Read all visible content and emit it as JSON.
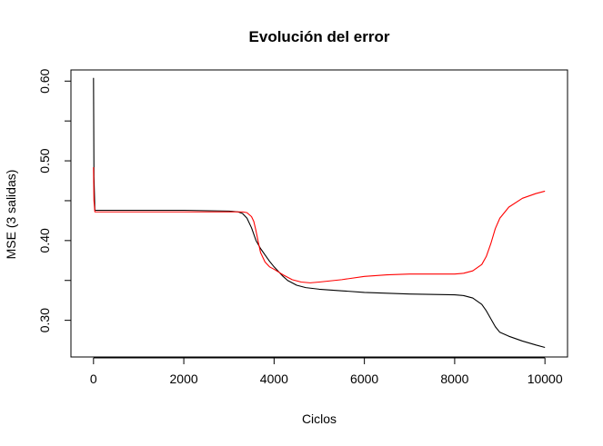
{
  "chart_data": {
    "type": "line",
    "title": "Evolución del error",
    "xlabel": "Ciclos",
    "ylabel": "MSE (3 salidas)",
    "xlim": [
      -500,
      10500
    ],
    "ylim": [
      0.254,
      0.614
    ],
    "xticks": [
      0,
      2000,
      4000,
      6000,
      8000,
      10000
    ],
    "xtick_labels": [
      "0",
      "2000",
      "4000",
      "6000",
      "8000",
      "10000"
    ],
    "yticks": [
      0.3,
      0.4,
      0.5,
      0.6
    ],
    "ytick_labels": [
      "0.30",
      "0.40",
      "0.50",
      "0.60"
    ],
    "grid": false,
    "legend": "none",
    "series": [
      {
        "color": "#000000",
        "x": [
          0,
          10,
          30,
          100,
          500,
          1000,
          2000,
          3000,
          3200,
          3300,
          3400,
          3500,
          3600,
          3700,
          3800,
          3900,
          4000,
          4100,
          4200,
          4300,
          4400,
          4500,
          4700,
          5000,
          5500,
          6000,
          7000,
          8000,
          8200,
          8400,
          8600,
          8700,
          8800,
          8900,
          9000,
          9200,
          9500,
          9800,
          10000
        ],
        "y": [
          0.604,
          0.48,
          0.438,
          0.438,
          0.438,
          0.438,
          0.438,
          0.437,
          0.436,
          0.434,
          0.428,
          0.416,
          0.4,
          0.39,
          0.382,
          0.374,
          0.367,
          0.361,
          0.355,
          0.35,
          0.347,
          0.344,
          0.341,
          0.339,
          0.337,
          0.335,
          0.333,
          0.332,
          0.331,
          0.328,
          0.32,
          0.312,
          0.302,
          0.292,
          0.285,
          0.28,
          0.274,
          0.269,
          0.266
        ]
      },
      {
        "color": "#ff0000",
        "x": [
          0,
          10,
          30,
          100,
          500,
          1000,
          2000,
          3000,
          3200,
          3300,
          3400,
          3500,
          3550,
          3600,
          3650,
          3700,
          3800,
          3900,
          4000,
          4200,
          4400,
          4600,
          4800,
          5000,
          5500,
          6000,
          6500,
          7000,
          7500,
          8000,
          8200,
          8400,
          8600,
          8700,
          8800,
          8900,
          9000,
          9200,
          9500,
          9800,
          10000
        ],
        "y": [
          0.492,
          0.45,
          0.436,
          0.436,
          0.436,
          0.436,
          0.436,
          0.436,
          0.436,
          0.436,
          0.435,
          0.43,
          0.424,
          0.412,
          0.398,
          0.385,
          0.373,
          0.367,
          0.364,
          0.357,
          0.351,
          0.348,
          0.347,
          0.348,
          0.351,
          0.355,
          0.357,
          0.358,
          0.358,
          0.358,
          0.359,
          0.362,
          0.37,
          0.38,
          0.396,
          0.415,
          0.428,
          0.442,
          0.453,
          0.459,
          0.462
        ]
      }
    ]
  }
}
